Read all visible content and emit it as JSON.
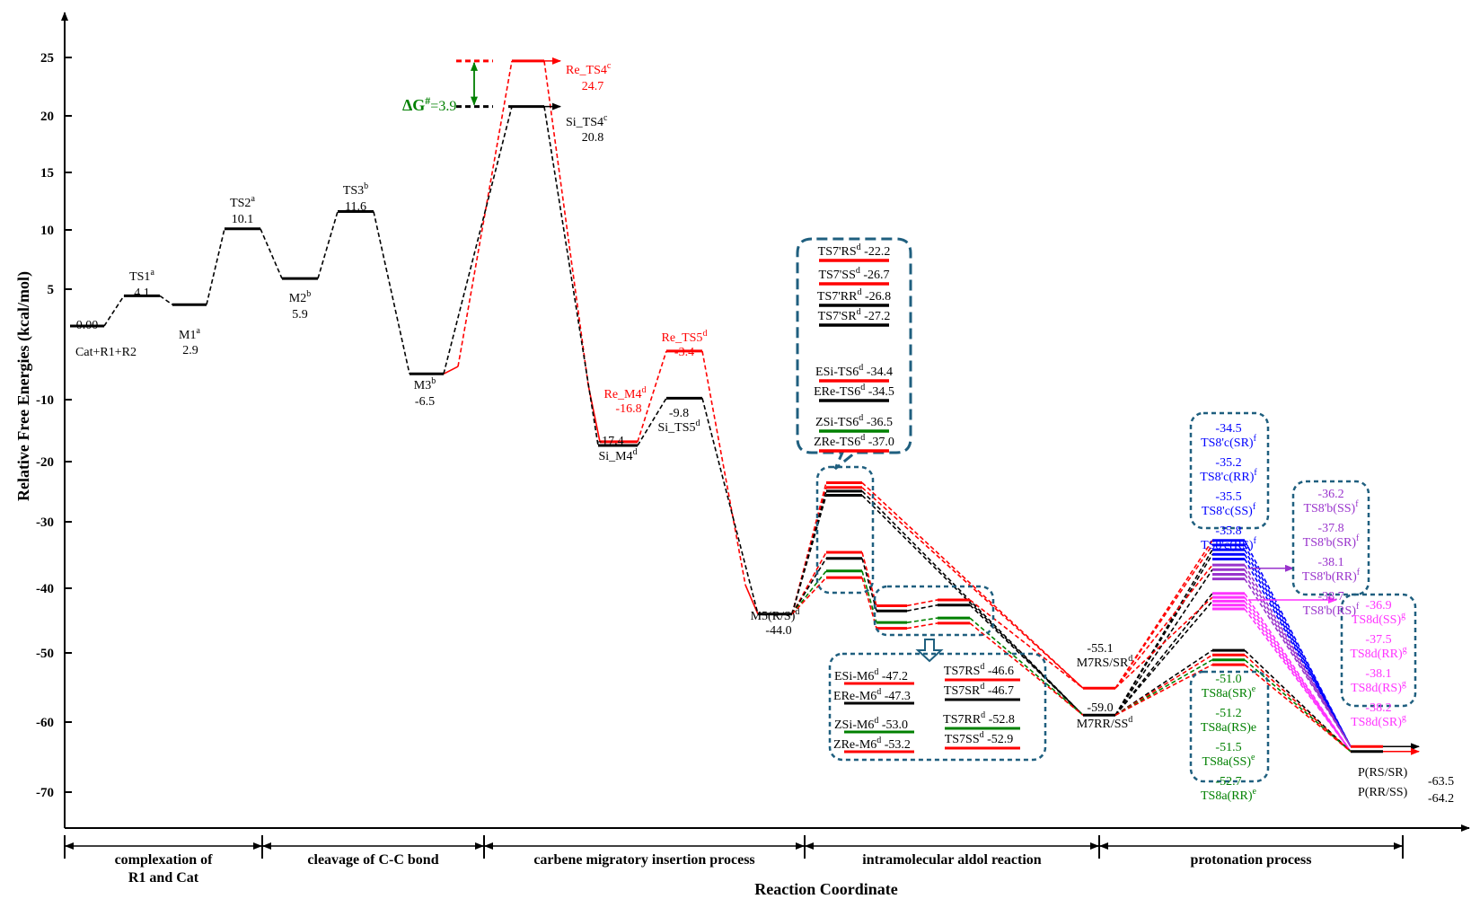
{
  "chart_data": {
    "type": "energy_profile",
    "xlabel": "Reaction Coordinate",
    "ylabel": "Relative Free Energies (kcal/mol)",
    "ylim": [
      -76,
      30
    ],
    "yticks": [
      {
        "v": 25,
        "t": "25"
      },
      {
        "v": 20,
        "t": "20"
      },
      {
        "v": 15,
        "t": "15"
      },
      {
        "v": 10,
        "t": "10"
      },
      {
        "v": 5,
        "t": "5"
      },
      {
        "v": -10,
        "t": "-10"
      },
      {
        "v": -20,
        "t": "-20"
      },
      {
        "v": -30,
        "t": "-30"
      },
      {
        "v": -40,
        "t": "-40"
      },
      {
        "v": -50,
        "t": "-50"
      },
      {
        "v": -60,
        "t": "-60"
      },
      {
        "v": -70,
        "t": "-70"
      }
    ],
    "colors": {
      "black": "#000000",
      "red": "#ff0000",
      "green": "#008000",
      "blue": "#0000ff",
      "purple": "#9933cc",
      "magenta": "#ff33ff",
      "box": "#1f5f7f"
    },
    "stages": [
      {
        "l1": "complexation of",
        "l2": "R1 and Cat"
      },
      {
        "l1": "cleavage of C-C bond",
        "l2": ""
      },
      {
        "l1": "carbene migratory insertion process",
        "l2": ""
      },
      {
        "l1": "intramolecular aldol reaction",
        "l2": ""
      },
      {
        "l1": "protonation process",
        "l2": ""
      }
    ],
    "delta_g_label": "ΔG",
    "delta_g_sup": "#",
    "delta_g_value": "=3.9",
    "levels": [
      {
        "name": "Cat+R1+R2",
        "value": "0.00"
      },
      {
        "name": "TS1",
        "sup": "a",
        "value": "4.1"
      },
      {
        "name": "M1",
        "sup": "a",
        "value": "2.9"
      },
      {
        "name": "TS2",
        "sup": "a",
        "value": "10.1"
      },
      {
        "name": "M2",
        "sup": "b",
        "value": "5.9"
      },
      {
        "name": "TS3",
        "sup": "b",
        "value": "11.6"
      },
      {
        "name": "M3",
        "sup": "b",
        "value": "-6.5"
      },
      {
        "name": "Re_TS4",
        "sup": "c",
        "value": "24.7"
      },
      {
        "name": "Si_TS4",
        "sup": "c",
        "value": "20.8"
      },
      {
        "name": "Re_M4",
        "sup": "d",
        "value": "-16.8"
      },
      {
        "name": "Si_M4",
        "sup": "d",
        "value": "-17.4"
      },
      {
        "name": "Re_TS5",
        "sup": "d",
        "value": "-3.4"
      },
      {
        "name": "Si_TS5",
        "sup": "d",
        "value": "-9.8"
      },
      {
        "name": "M5(R/S)",
        "sup": "d",
        "value": "-44.0"
      },
      {
        "name": "M7RS/SR",
        "sup": "d",
        "value": "-55.1"
      },
      {
        "name": "M7RR/SS",
        "sup": "d",
        "value": "-59.0"
      },
      {
        "name": "P(RS/SR)",
        "value": "-63.5"
      },
      {
        "name": "P(RR/SS)",
        "value": "-64.2"
      }
    ],
    "ts6_ts7_box": [
      {
        "name": "TS7'RS",
        "sup": "d",
        "value": "-22.2"
      },
      {
        "name": "TS7'SS",
        "sup": "d",
        "value": "-26.7"
      },
      {
        "name": "TS7'RR",
        "sup": "d",
        "value": "-26.8"
      },
      {
        "name": "TS7'SR",
        "sup": "d",
        "value": "-27.2"
      },
      {
        "name": "ESi-TS6",
        "sup": "d",
        "value": "-34.4"
      },
      {
        "name": "ERe-TS6",
        "sup": "d",
        "value": "-34.5"
      },
      {
        "name": "ZSi-TS6",
        "sup": "d",
        "value": "-36.5"
      },
      {
        "name": "ZRe-TS6",
        "sup": "d",
        "value": "-37.0"
      }
    ],
    "m6_ts7_box": [
      {
        "name": "ESi-M6",
        "sup": "d",
        "value": "-47.2"
      },
      {
        "name": "TS7RS",
        "sup": "d",
        "value": "-46.6"
      },
      {
        "name": "ERe-M6",
        "sup": "d",
        "value": "-47.3"
      },
      {
        "name": "TS7SR",
        "sup": "d",
        "value": "-46.7"
      },
      {
        "name": "ZSi-M6",
        "sup": "d",
        "value": "-53.0"
      },
      {
        "name": "TS7RR",
        "sup": "d",
        "value": "-52.8"
      },
      {
        "name": "ZRe-M6",
        "sup": "d",
        "value": "-53.2"
      },
      {
        "name": "TS7SS",
        "sup": "d",
        "value": "-52.9"
      }
    ],
    "ts8c_box": [
      {
        "value": "-34.5",
        "name": "TS8'c(SR)",
        "sup": "f"
      },
      {
        "value": "-35.2",
        "name": "TS8'c(RR)",
        "sup": "f"
      },
      {
        "value": "-35.5",
        "name": "TS8'c(SS)",
        "sup": "f"
      },
      {
        "value": "-35.8",
        "name": "TS8'c(RS)",
        "sup": "f"
      }
    ],
    "ts8b_box": [
      {
        "value": "-36.2",
        "name": "TS8'b(SS)",
        "sup": "f"
      },
      {
        "value": "-37.8",
        "name": "TS8'b(SR)",
        "sup": "f"
      },
      {
        "value": "-38.1",
        "name": "TS8'b(RR)",
        "sup": "f"
      },
      {
        "value": "-38.7",
        "name": "TS8'b(RS)",
        "sup": "f"
      }
    ],
    "ts8d_box": [
      {
        "value": "-36.9",
        "name": "TS8d(SS)",
        "sup": "g"
      },
      {
        "value": "-37.5",
        "name": "TS8d(RR)",
        "sup": "g"
      },
      {
        "value": "-38.1",
        "name": "TS8d(RS)",
        "sup": "g"
      },
      {
        "value": "-38.2",
        "name": "TS8d(SR)",
        "sup": "g"
      }
    ],
    "ts8a_box": [
      {
        "value": "-51.0",
        "name": "TS8a(SR)",
        "sup": "e"
      },
      {
        "value": "-51.2",
        "name": "TS8a(RS)e",
        "sup": ""
      },
      {
        "value": "-51.5",
        "name": "TS8a(SS)",
        "sup": "e"
      },
      {
        "value": "-52.7",
        "name": "TS8a(RR)",
        "sup": "e"
      }
    ]
  }
}
